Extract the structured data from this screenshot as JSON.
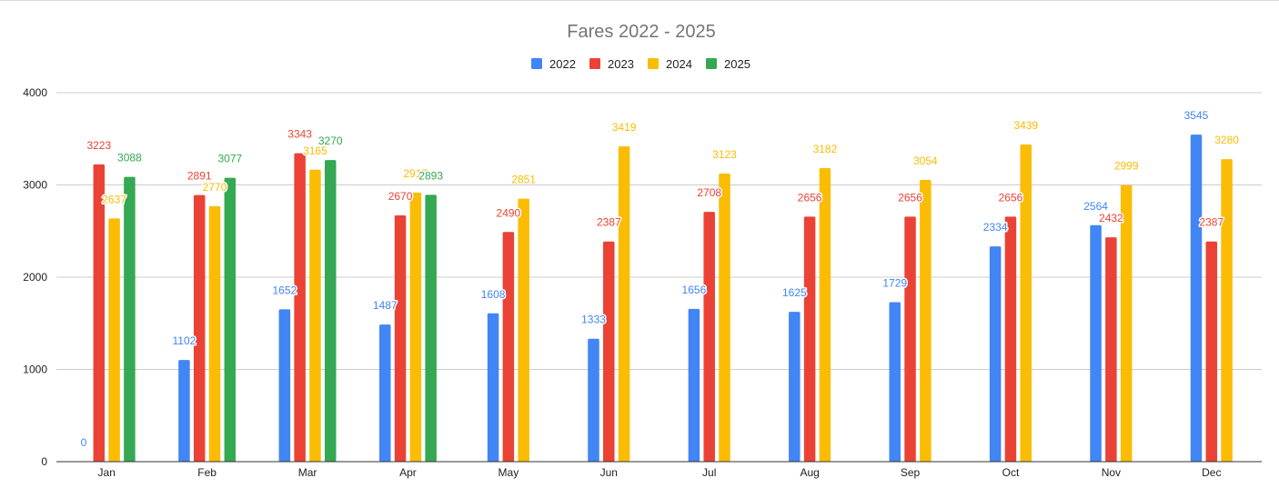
{
  "chart_data": {
    "type": "bar",
    "title": "Fares 2022 - 2025",
    "xlabel": "",
    "ylabel": "",
    "ylim": [
      0,
      4000
    ],
    "yticks": [
      0,
      1000,
      2000,
      3000,
      4000
    ],
    "grid": true,
    "legend_position": "top-center",
    "categories": [
      "Jan",
      "Feb",
      "Mar",
      "Apr",
      "May",
      "Jun",
      "Jul",
      "Aug",
      "Sep",
      "Oct",
      "Nov",
      "Dec"
    ],
    "series": [
      {
        "name": "2022",
        "color": "#4285f4",
        "values": [
          0,
          1102,
          1652,
          1487,
          1608,
          1333,
          1656,
          1625,
          1729,
          2334,
          2564,
          3545
        ]
      },
      {
        "name": "2023",
        "color": "#ea4335",
        "values": [
          3223,
          2891,
          3343,
          2670,
          2490,
          2387,
          2708,
          2656,
          2656,
          2656,
          2432,
          2387
        ]
      },
      {
        "name": "2024",
        "color": "#fbbc04",
        "values": [
          2637,
          2770,
          3165,
          2917,
          2851,
          3419,
          3123,
          3182,
          3054,
          3439,
          2999,
          3280
        ]
      },
      {
        "name": "2025",
        "color": "#34a853",
        "values": [
          3088,
          3077,
          3270,
          2893,
          null,
          null,
          null,
          null,
          null,
          null,
          null,
          null
        ]
      }
    ]
  }
}
